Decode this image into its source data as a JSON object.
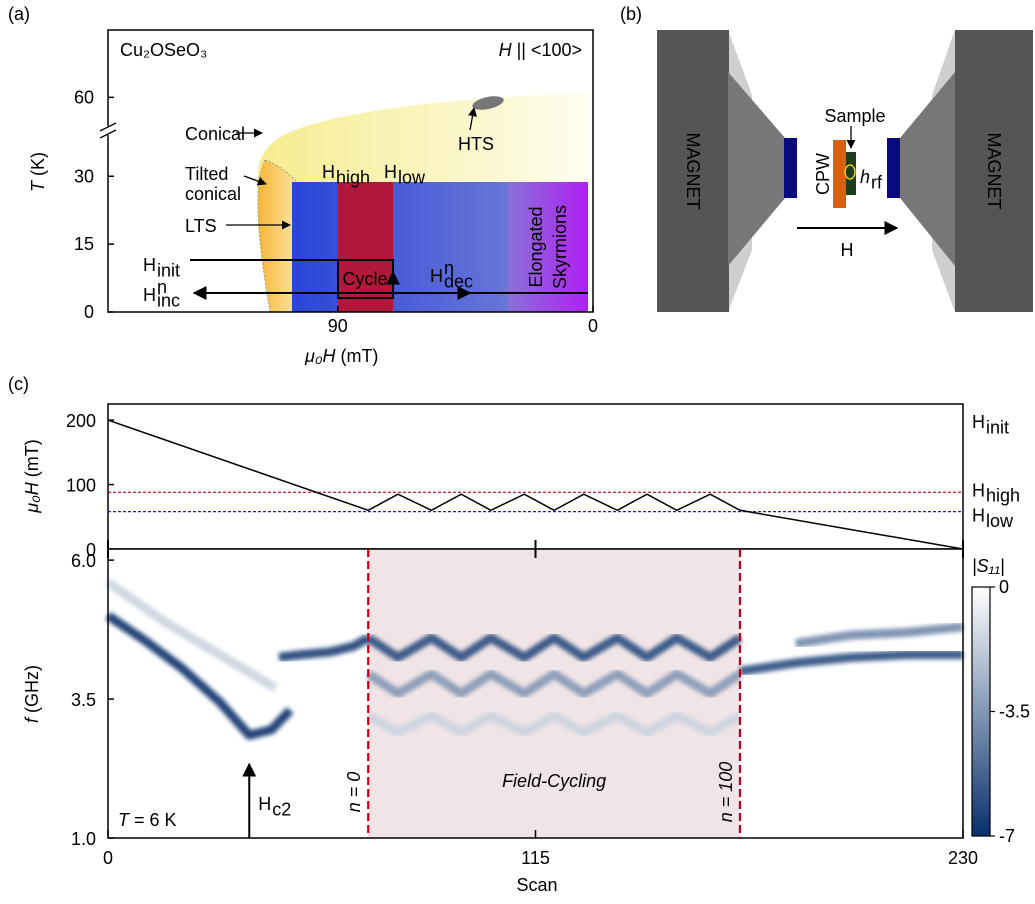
{
  "panel_labels": [
    "(a)",
    "(b)",
    "(c)"
  ],
  "chart_data": [
    {
      "type": "phase-diagram",
      "material": "Cu₂OSeO₃",
      "field_direction": {
        "symbol": "H",
        "text": "|| <100>"
      },
      "xlabel": {
        "symbol": "μ₀H",
        "unit": "(mT)"
      },
      "ylabel": {
        "symbol": "T",
        "unit": "(K)"
      },
      "xlim": [
        171,
        0
      ],
      "xticks": [
        90,
        0
      ],
      "ylim": [
        0,
        70
      ],
      "ybreak": [
        40,
        55
      ],
      "yticks": [
        0,
        15,
        30,
        60
      ],
      "phases": {
        "conical": "Conical",
        "tilted": [
          "Tilted",
          "conical"
        ],
        "lts": "LTS",
        "hts": "HTS",
        "cycle": "Cycle",
        "elongated": [
          "Elongated",
          "Skyrmions"
        ]
      },
      "fields": {
        "high": {
          "base": "H",
          "sub": "high"
        },
        "low": {
          "base": "H",
          "sub": "low"
        },
        "init": {
          "base": "H",
          "sub": "init"
        },
        "inc": {
          "base": "H",
          "sub": "inc",
          "sup": "n"
        },
        "dec": {
          "base": "H",
          "sub": "dec",
          "sup": "n"
        }
      }
    },
    {
      "type": "line",
      "ylabel": {
        "symbol": "μ₀H",
        "unit": "(mT)"
      },
      "xlim": [
        0,
        230
      ],
      "ylim": [
        0,
        225
      ],
      "yticks": [
        0,
        100,
        200
      ],
      "x": [
        0,
        70,
        78,
        87,
        95,
        103,
        112,
        120,
        128,
        137,
        145,
        153,
        162,
        170,
        230
      ],
      "values": [
        200,
        60,
        85,
        60,
        85,
        60,
        85,
        60,
        85,
        60,
        85,
        60,
        85,
        60,
        0
      ],
      "color": "#000000",
      "start_label": {
        "base": "H",
        "sub": "init"
      },
      "reference_lines": [
        {
          "label": {
            "base": "H",
            "sub": "high"
          },
          "value": 88,
          "color": "#c0001a"
        },
        {
          "label": {
            "base": "H",
            "sub": "low"
          },
          "value": 58,
          "color": "#1a1ab8"
        }
      ]
    },
    {
      "type": "heatmap",
      "xlabel": "Scan",
      "ylabel": {
        "symbol": "f",
        "unit": "(GHz)"
      },
      "xlim": [
        0,
        230
      ],
      "xticks": [
        0,
        115,
        230
      ],
      "ylim": [
        1,
        6.2
      ],
      "yticks": [
        {
          "value": 1,
          "label": "1.0"
        },
        {
          "value": 3.5,
          "label": "3.5"
        },
        {
          "value": 6,
          "label": "6.0"
        }
      ],
      "colorbar": {
        "label": "|S₁₁|",
        "clim": [
          -7,
          0
        ],
        "ticks": [
          0,
          -3.5,
          -7
        ],
        "colors": [
          "#08306b",
          "#ffffff"
        ]
      },
      "traces": [
        {
          "x": [
            0,
            10,
            20,
            30,
            38,
            44,
            49
          ],
          "values": [
            5.0,
            4.55,
            4.05,
            3.45,
            2.85,
            2.95,
            3.3
          ],
          "level": -7
        },
        {
          "x": [
            46,
            52,
            60,
            66,
            70
          ],
          "values": [
            4.25,
            4.3,
            4.35,
            4.45,
            4.6
          ],
          "level": -6.5
        },
        {
          "x": [
            70,
            78,
            87,
            95,
            103,
            112,
            120,
            128,
            137,
            145,
            153,
            162,
            170
          ],
          "values": [
            4.6,
            4.25,
            4.6,
            4.25,
            4.6,
            4.25,
            4.6,
            4.25,
            4.6,
            4.25,
            4.6,
            4.25,
            4.6
          ],
          "level": -6
        },
        {
          "x": [
            70,
            78,
            87,
            95,
            103,
            112,
            120,
            128,
            137,
            145,
            153,
            162,
            170
          ],
          "values": [
            3.95,
            3.6,
            3.95,
            3.6,
            3.95,
            3.6,
            3.95,
            3.6,
            3.95,
            3.6,
            3.95,
            3.6,
            3.95
          ],
          "level": -3.5
        },
        {
          "x": [
            70,
            78,
            87,
            95,
            103,
            112,
            120,
            128,
            137,
            145,
            153,
            162,
            170
          ],
          "values": [
            3.2,
            2.9,
            3.2,
            2.9,
            3.2,
            2.9,
            3.2,
            2.9,
            3.2,
            2.9,
            3.2,
            2.9,
            3.2
          ],
          "level": -1.5
        },
        {
          "x": [
            170,
            185,
            200,
            215,
            230
          ],
          "values": [
            4.0,
            4.15,
            4.25,
            4.3,
            4.3
          ],
          "level": -6
        },
        {
          "x": [
            185,
            200,
            215,
            230
          ],
          "values": [
            4.5,
            4.65,
            4.7,
            4.8
          ],
          "level": -4
        },
        {
          "x": [
            0,
            15,
            30,
            45
          ],
          "values": [
            5.6,
            4.9,
            4.3,
            3.7
          ],
          "level": -1.5
        }
      ],
      "cycling": {
        "range": [
          70,
          170
        ],
        "start_label": "n = 0",
        "end_label": "n = 100",
        "label": "Field-Cycling",
        "color": "#f0e4e6",
        "line_color": "#c0001a"
      },
      "temperature": {
        "symbol": "T",
        "text": "= 6 K"
      },
      "marker": {
        "x": 38,
        "label": {
          "base": "H",
          "sub": "c2"
        }
      }
    }
  ],
  "diagram": {
    "magnets": [
      "MAGNET",
      "MAGNET"
    ],
    "sample": "Sample",
    "cpw": "CPW",
    "hrf": {
      "base": "h",
      "sub": "rf"
    },
    "field": "H"
  }
}
